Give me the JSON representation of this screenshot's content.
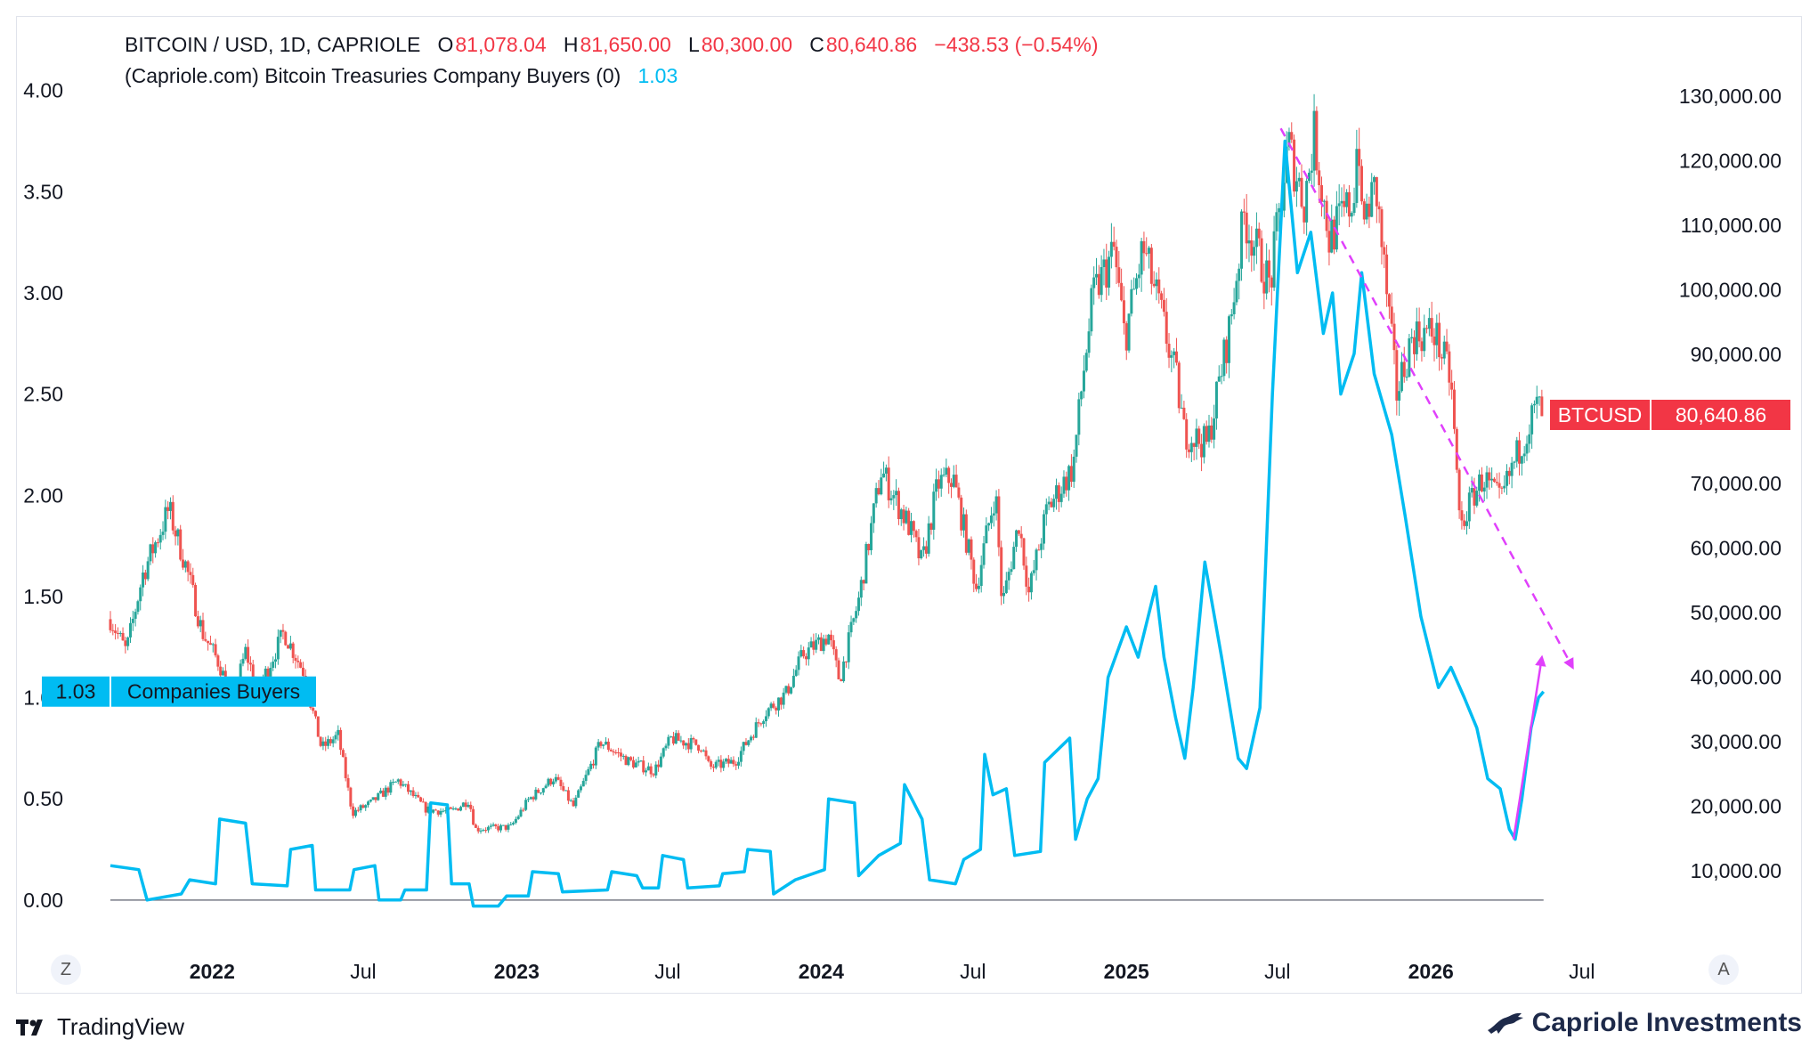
{
  "legend": {
    "symbol": "BITCOIN / USD, 1D, CAPRIOLE",
    "o_label": "O",
    "open": "81,078.04",
    "h_label": "H",
    "high": "81,650.00",
    "l_label": "L",
    "low": "80,300.00",
    "c_label": "C",
    "close": "80,640.86",
    "change": "−438.53 (−0.54%)",
    "indicator": "(Capriole.com) Bitcoin Treasuries Company Buyers (0)",
    "indicator_value": "1.03"
  },
  "footer": {
    "tradingview": "TradingView",
    "capriole": "Capriole Investments"
  },
  "buttons": {
    "left": "Z",
    "right": "A"
  },
  "colors": {
    "up": "#26a69a",
    "down": "#ef5350",
    "indicator": "#00bcf2",
    "trend": "#e040fb",
    "label_red": "#f23645"
  },
  "chart_data": {
    "type": "line",
    "x_range": [
      "2021-09-01",
      "2026-08-15"
    ],
    "x_ticks": [
      {
        "label": "2022",
        "date": "2022-01-01",
        "bold": true
      },
      {
        "label": "Jul",
        "date": "2022-07-01",
        "bold": false
      },
      {
        "label": "2023",
        "date": "2023-01-01",
        "bold": true
      },
      {
        "label": "Jul",
        "date": "2023-07-01",
        "bold": false
      },
      {
        "label": "2024",
        "date": "2024-01-01",
        "bold": true
      },
      {
        "label": "Jul",
        "date": "2024-07-01",
        "bold": false
      },
      {
        "label": "2025",
        "date": "2025-01-01",
        "bold": true
      },
      {
        "label": "Jul",
        "date": "2025-07-01",
        "bold": false
      },
      {
        "label": "2026",
        "date": "2026-01-01",
        "bold": true
      },
      {
        "label": "Jul",
        "date": "2026-07-01",
        "bold": false
      }
    ],
    "left_axis": {
      "range": [
        -0.08,
        4.1
      ],
      "ticks": [
        "4.00",
        "3.50",
        "3.00",
        "2.50",
        "2.00",
        "1.50",
        "1.00",
        "0.50",
        "0.00"
      ]
    },
    "right_axis": {
      "range": [
        3000,
        134000
      ],
      "ticks": [
        "130,000.00",
        "120,000.00",
        "110,000.00",
        "100,000.00",
        "90,000.00",
        "80,000.00",
        "70,000.00",
        "60,000.00",
        "50,000.00",
        "40,000.00",
        "30,000.00",
        "20,000.00",
        "10,000.00"
      ]
    },
    "series": [
      {
        "name": "BTCUSD",
        "axis": "right",
        "style": "candles",
        "last_label": "BTCUSD",
        "last_value_label": "80,640.86",
        "last_value": 80640.86,
        "points": [
          [
            "2021-09-01",
            49000
          ],
          [
            "2021-09-20",
            44000
          ],
          [
            "2021-10-10",
            56000
          ],
          [
            "2021-11-10",
            66000
          ],
          [
            "2021-12-01",
            57000
          ],
          [
            "2021-12-20",
            47000
          ],
          [
            "2022-01-10",
            42000
          ],
          [
            "2022-01-25",
            36000
          ],
          [
            "2022-02-10",
            44000
          ],
          [
            "2022-02-25",
            38000
          ],
          [
            "2022-03-28",
            47000
          ],
          [
            "2022-04-20",
            41000
          ],
          [
            "2022-05-12",
            29000
          ],
          [
            "2022-06-01",
            31000
          ],
          [
            "2022-06-18",
            19000
          ],
          [
            "2022-07-10",
            20500
          ],
          [
            "2022-08-12",
            24000
          ],
          [
            "2022-09-15",
            19500
          ],
          [
            "2022-10-15",
            19200
          ],
          [
            "2022-11-05",
            21000
          ],
          [
            "2022-11-12",
            16500
          ],
          [
            "2022-12-25",
            16800
          ],
          [
            "2023-01-15",
            21000
          ],
          [
            "2023-02-15",
            24500
          ],
          [
            "2023-03-10",
            20000
          ],
          [
            "2023-04-12",
            30000
          ],
          [
            "2023-05-15",
            27000
          ],
          [
            "2023-06-15",
            25500
          ],
          [
            "2023-07-05",
            30500
          ],
          [
            "2023-08-10",
            29400
          ],
          [
            "2023-08-20",
            26000
          ],
          [
            "2023-09-20",
            27000
          ],
          [
            "2023-10-25",
            34500
          ],
          [
            "2023-11-20",
            37500
          ],
          [
            "2023-12-10",
            43500
          ],
          [
            "2024-01-10",
            46500
          ],
          [
            "2024-01-23",
            39500
          ],
          [
            "2024-02-15",
            52000
          ],
          [
            "2024-03-13",
            72000
          ],
          [
            "2024-04-15",
            63500
          ],
          [
            "2024-05-01",
            57500
          ],
          [
            "2024-05-20",
            70000
          ],
          [
            "2024-06-07",
            71000
          ],
          [
            "2024-07-05",
            54000
          ],
          [
            "2024-07-28",
            69000
          ],
          [
            "2024-08-05",
            51000
          ],
          [
            "2024-08-25",
            64000
          ],
          [
            "2024-09-06",
            53000
          ],
          [
            "2024-09-28",
            66000
          ],
          [
            "2024-10-29",
            72500
          ],
          [
            "2024-11-12",
            89000
          ],
          [
            "2024-11-22",
            99000
          ],
          [
            "2024-12-17",
            106000
          ],
          [
            "2024-12-30",
            92500
          ],
          [
            "2025-01-21",
            106500
          ],
          [
            "2025-02-10",
            97000
          ],
          [
            "2025-03-02",
            86000
          ],
          [
            "2025-03-11",
            78000
          ],
          [
            "2025-04-08",
            76000
          ],
          [
            "2025-05-05",
            94500
          ],
          [
            "2025-05-22",
            111500
          ],
          [
            "2025-06-22",
            100500
          ],
          [
            "2025-07-14",
            122500
          ],
          [
            "2025-08-02",
            113500
          ],
          [
            "2025-08-14",
            124000
          ],
          [
            "2025-09-01",
            108000
          ],
          [
            "2025-09-30",
            114000
          ],
          [
            "2025-10-06",
            126000
          ],
          [
            "2025-10-10",
            110000
          ],
          [
            "2025-10-27",
            116000
          ],
          [
            "2025-11-21",
            84000
          ],
          [
            "2025-12-10",
            93000
          ],
          [
            "2026-01-05",
            93500
          ],
          [
            "2026-01-25",
            86000
          ],
          [
            "2026-02-05",
            63000
          ],
          [
            "2026-02-20",
            68000
          ],
          [
            "2026-03-05",
            71000
          ],
          [
            "2026-03-25",
            67000
          ],
          [
            "2026-04-10",
            73000
          ],
          [
            "2026-04-25",
            78000
          ],
          [
            "2026-05-08",
            82000
          ],
          [
            "2026-05-16",
            80640.86
          ]
        ]
      },
      {
        "name": "Companies Buyers",
        "axis": "left",
        "style": "line",
        "last_label": "Companies Buyers",
        "last_value_label": "1.03",
        "points": [
          [
            "2021-09-01",
            0.17
          ],
          [
            "2021-10-05",
            0.15
          ],
          [
            "2021-10-15",
            0.0
          ],
          [
            "2021-11-25",
            0.03
          ],
          [
            "2021-12-05",
            0.1
          ],
          [
            "2022-01-05",
            0.08
          ],
          [
            "2022-01-10",
            0.4
          ],
          [
            "2022-02-10",
            0.38
          ],
          [
            "2022-02-18",
            0.08
          ],
          [
            "2022-04-01",
            0.07
          ],
          [
            "2022-04-05",
            0.25
          ],
          [
            "2022-05-01",
            0.27
          ],
          [
            "2022-05-05",
            0.05
          ],
          [
            "2022-06-15",
            0.05
          ],
          [
            "2022-06-20",
            0.15
          ],
          [
            "2022-07-15",
            0.17
          ],
          [
            "2022-07-20",
            0.0
          ],
          [
            "2022-08-15",
            0.0
          ],
          [
            "2022-08-20",
            0.05
          ],
          [
            "2022-09-15",
            0.05
          ],
          [
            "2022-09-20",
            0.48
          ],
          [
            "2022-10-10",
            0.47
          ],
          [
            "2022-10-15",
            0.08
          ],
          [
            "2022-11-05",
            0.08
          ],
          [
            "2022-11-10",
            -0.03
          ],
          [
            "2022-12-10",
            -0.03
          ],
          [
            "2022-12-20",
            0.02
          ],
          [
            "2023-01-15",
            0.02
          ],
          [
            "2023-01-20",
            0.14
          ],
          [
            "2023-02-20",
            0.13
          ],
          [
            "2023-02-25",
            0.04
          ],
          [
            "2023-04-20",
            0.05
          ],
          [
            "2023-04-25",
            0.14
          ],
          [
            "2023-05-25",
            0.12
          ],
          [
            "2023-06-01",
            0.06
          ],
          [
            "2023-06-20",
            0.06
          ],
          [
            "2023-06-25",
            0.22
          ],
          [
            "2023-07-20",
            0.2
          ],
          [
            "2023-07-25",
            0.06
          ],
          [
            "2023-09-01",
            0.07
          ],
          [
            "2023-09-05",
            0.13
          ],
          [
            "2023-10-01",
            0.14
          ],
          [
            "2023-10-05",
            0.25
          ],
          [
            "2023-11-01",
            0.24
          ],
          [
            "2023-11-05",
            0.03
          ],
          [
            "2023-12-01",
            0.1
          ],
          [
            "2024-01-05",
            0.15
          ],
          [
            "2024-01-10",
            0.5
          ],
          [
            "2024-02-10",
            0.48
          ],
          [
            "2024-02-15",
            0.12
          ],
          [
            "2024-03-10",
            0.22
          ],
          [
            "2024-04-05",
            0.28
          ],
          [
            "2024-04-10",
            0.57
          ],
          [
            "2024-05-01",
            0.4
          ],
          [
            "2024-05-10",
            0.1
          ],
          [
            "2024-06-10",
            0.08
          ],
          [
            "2024-06-20",
            0.2
          ],
          [
            "2024-07-10",
            0.25
          ],
          [
            "2024-07-15",
            0.72
          ],
          [
            "2024-07-25",
            0.52
          ],
          [
            "2024-08-10",
            0.55
          ],
          [
            "2024-08-20",
            0.22
          ],
          [
            "2024-09-20",
            0.24
          ],
          [
            "2024-09-25",
            0.68
          ],
          [
            "2024-10-25",
            0.8
          ],
          [
            "2024-11-01",
            0.3
          ],
          [
            "2024-11-15",
            0.5
          ],
          [
            "2024-11-28",
            0.6
          ],
          [
            "2024-12-10",
            1.1
          ],
          [
            "2025-01-01",
            1.35
          ],
          [
            "2025-01-15",
            1.2
          ],
          [
            "2025-02-05",
            1.55
          ],
          [
            "2025-02-15",
            1.2
          ],
          [
            "2025-03-01",
            0.9
          ],
          [
            "2025-03-12",
            0.7
          ],
          [
            "2025-03-22",
            1.05
          ],
          [
            "2025-04-05",
            1.67
          ],
          [
            "2025-04-25",
            1.2
          ],
          [
            "2025-05-15",
            0.7
          ],
          [
            "2025-05-25",
            0.65
          ],
          [
            "2025-06-10",
            0.95
          ],
          [
            "2025-06-25",
            2.5
          ],
          [
            "2025-07-10",
            3.75
          ],
          [
            "2025-07-25",
            3.1
          ],
          [
            "2025-08-10",
            3.3
          ],
          [
            "2025-08-25",
            2.8
          ],
          [
            "2025-09-05",
            3.0
          ],
          [
            "2025-09-15",
            2.5
          ],
          [
            "2025-10-01",
            2.7
          ],
          [
            "2025-10-10",
            3.1
          ],
          [
            "2025-10-25",
            2.6
          ],
          [
            "2025-11-15",
            2.3
          ],
          [
            "2025-12-01",
            1.9
          ],
          [
            "2025-12-20",
            1.4
          ],
          [
            "2026-01-10",
            1.05
          ],
          [
            "2026-01-25",
            1.15
          ],
          [
            "2026-02-10",
            1.0
          ],
          [
            "2026-02-25",
            0.85
          ],
          [
            "2026-03-10",
            0.6
          ],
          [
            "2026-03-25",
            0.55
          ],
          [
            "2026-04-05",
            0.35
          ],
          [
            "2026-04-12",
            0.3
          ],
          [
            "2026-04-20",
            0.5
          ],
          [
            "2026-05-01",
            0.85
          ],
          [
            "2026-05-10",
            1.0
          ],
          [
            "2026-05-16",
            1.03
          ]
        ]
      }
    ],
    "annotations": [
      {
        "type": "dashed-arrow",
        "axis": "right",
        "from": [
          "2025-07-05",
          125000
        ],
        "to": [
          "2026-06-20",
          41500
        ]
      },
      {
        "type": "solid-arrow",
        "axis": "left",
        "from": [
          "2026-04-10",
          0.3
        ],
        "to": [
          "2026-05-14",
          1.2
        ]
      }
    ]
  }
}
